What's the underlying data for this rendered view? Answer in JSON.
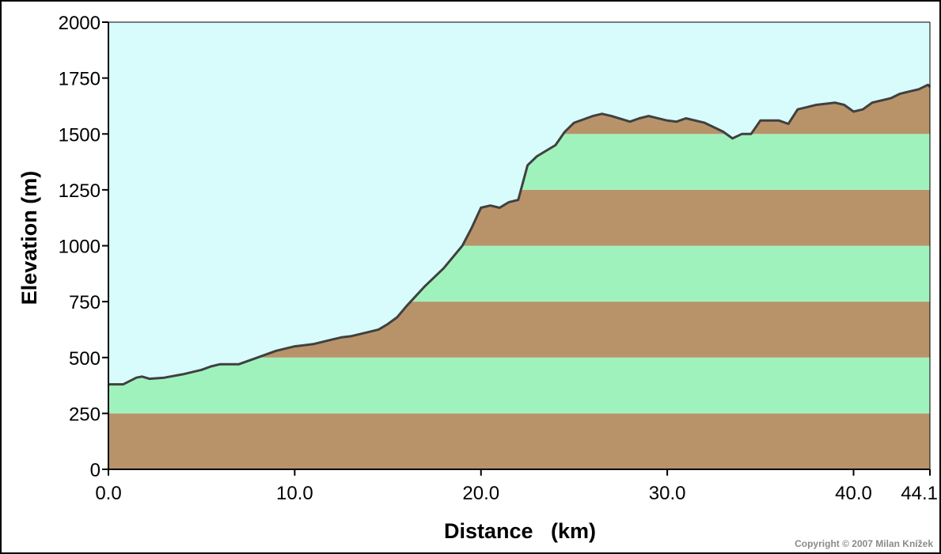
{
  "chart_data": {
    "type": "area",
    "xlabel": "Distance   (km)",
    "ylabel": "Elevation (m)",
    "xlim": [
      0,
      44.1
    ],
    "ylim": [
      0,
      2000
    ],
    "x_ticks": [
      {
        "value": 0,
        "label": "0.0"
      },
      {
        "value": 10,
        "label": "10.0"
      },
      {
        "value": 20,
        "label": "20.0"
      },
      {
        "value": 30,
        "label": "30.0"
      },
      {
        "value": 40,
        "label": "40.0"
      },
      {
        "value": 44.1,
        "label": "44.1"
      }
    ],
    "y_ticks": [
      {
        "value": 0,
        "label": "0"
      },
      {
        "value": 250,
        "label": "250"
      },
      {
        "value": 500,
        "label": "500"
      },
      {
        "value": 750,
        "label": "750"
      },
      {
        "value": 1000,
        "label": "1000"
      },
      {
        "value": 1250,
        "label": "1250"
      },
      {
        "value": 1500,
        "label": "1500"
      },
      {
        "value": 1750,
        "label": "1750"
      },
      {
        "value": 2000,
        "label": "2000"
      }
    ],
    "band_step": 250,
    "colors": {
      "sky": "#d8fcfc",
      "band_brown": "#b8936a",
      "band_green": "#a0f2bd",
      "outline": "#404040"
    },
    "series": [
      {
        "x": [
          0,
          0.8,
          1.5,
          1.8,
          2.2,
          3,
          4,
          5,
          5.5,
          6,
          7,
          8,
          9,
          10,
          11,
          12,
          12.5,
          13,
          14,
          14.5,
          15,
          15.5,
          16,
          17,
          18,
          19,
          19.5,
          20,
          20.5,
          21,
          21.5,
          22,
          22.5,
          23,
          24,
          24.5,
          25,
          26,
          26.5,
          27,
          28,
          28.5,
          29,
          30,
          30.5,
          31,
          32,
          33,
          33.5,
          34,
          34.5,
          35,
          36,
          36.5,
          37,
          38,
          39,
          39.5,
          40,
          40.5,
          41,
          42,
          42.5,
          43,
          43.5,
          44,
          44.1
        ],
        "y": [
          380,
          380,
          410,
          415,
          405,
          410,
          425,
          445,
          460,
          470,
          470,
          500,
          530,
          550,
          560,
          580,
          590,
          595,
          615,
          625,
          650,
          680,
          730,
          820,
          900,
          1000,
          1080,
          1170,
          1180,
          1170,
          1195,
          1205,
          1360,
          1400,
          1450,
          1510,
          1550,
          1580,
          1590,
          1580,
          1555,
          1570,
          1580,
          1560,
          1555,
          1570,
          1550,
          1510,
          1480,
          1500,
          1500,
          1560,
          1560,
          1545,
          1610,
          1630,
          1640,
          1630,
          1600,
          1610,
          1640,
          1660,
          1680,
          1690,
          1700,
          1720,
          1710
        ]
      }
    ]
  },
  "copyright": "Copyright © 2007 Milan Knížek"
}
